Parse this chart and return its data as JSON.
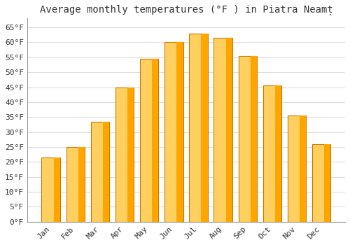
{
  "title": "Average monthly temperatures (°F ) in Piatra Neamț",
  "months": [
    "Jan",
    "Feb",
    "Mar",
    "Apr",
    "May",
    "Jun",
    "Jul",
    "Aug",
    "Sep",
    "Oct",
    "Nov",
    "Dec"
  ],
  "values": [
    21.5,
    25.0,
    33.5,
    45.0,
    54.5,
    60.0,
    63.0,
    61.5,
    55.5,
    45.5,
    35.5,
    26.0
  ],
  "bar_color_top": "#FFA500",
  "bar_color_bottom": "#FFD060",
  "bar_edge_color": "#CC7700",
  "background_color": "#FFFFFF",
  "grid_color": "#DDDDDD",
  "text_color": "#333333",
  "ylim": [
    0,
    68
  ],
  "yticks": [
    0,
    5,
    10,
    15,
    20,
    25,
    30,
    35,
    40,
    45,
    50,
    55,
    60,
    65
  ],
  "title_fontsize": 10,
  "tick_fontsize": 8,
  "font_family": "monospace"
}
